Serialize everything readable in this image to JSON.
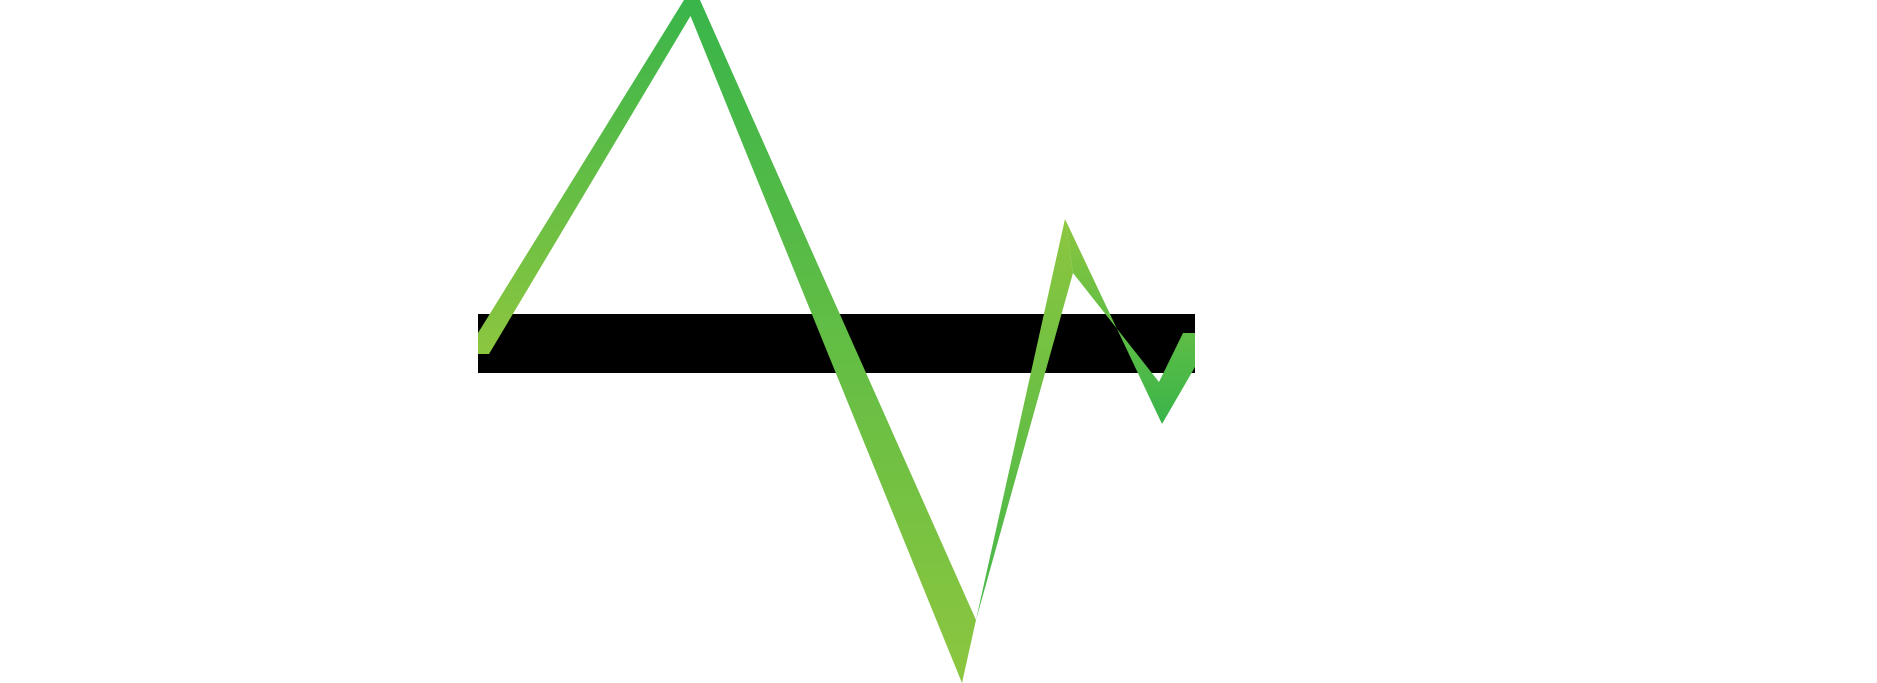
{
  "graphic": {
    "icon": "waveform-logo",
    "colors": {
      "background": "#ffffff",
      "bar": "#000000",
      "wave_light": "#8cc63f",
      "wave_dark": "#39b54a"
    }
  }
}
